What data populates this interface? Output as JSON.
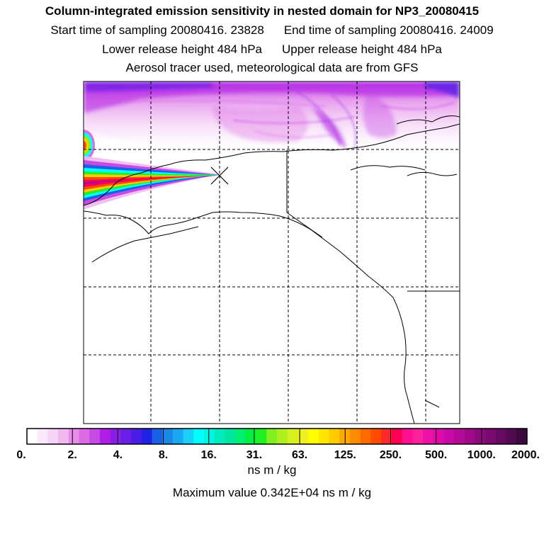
{
  "header": {
    "title": "Column-integrated emission sensitivity in nested domain for NP3_20080415",
    "start_time": "Start time of sampling 20080416. 23828",
    "end_time": "End time of sampling 20080416. 24009",
    "lower_release": "Lower release height  484 hPa",
    "upper_release": "Upper release height  484 hPa",
    "tracer_info": "Aerosol tracer used, meteorological data are from GFS"
  },
  "colorbar": {
    "tick_labels": [
      "0.",
      "2.",
      "4.",
      "8.",
      "16.",
      "31.",
      "63.",
      "125.",
      "250.",
      "500.",
      "1000.",
      "2000."
    ],
    "colors": [
      "#ffffff",
      "#fbe8fb",
      "#f6d2f6",
      "#efb8ef",
      "#e88ee8",
      "#dc6ce6",
      "#c64ae6",
      "#b01ee6",
      "#8a1ee6",
      "#6a1ee6",
      "#4a1ee6",
      "#2222e6",
      "#1a60e6",
      "#1a88e6",
      "#1aa8f0",
      "#1ad0f6",
      "#00ffff",
      "#00f6e0",
      "#00ecc0",
      "#00e6a0",
      "#00ee70",
      "#00f040",
      "#22f020",
      "#80f020",
      "#b0f020",
      "#d6f020",
      "#ecf020",
      "#ffff00",
      "#ffe600",
      "#ffcc00",
      "#ffa800",
      "#ff8c00",
      "#ff6a00",
      "#ff4a00",
      "#ff2a2a",
      "#ff0050",
      "#ff1090",
      "#ff20a0",
      "#f010a8",
      "#e00aa8",
      "#c80aa8",
      "#b40a98",
      "#a00a88",
      "#8a0a7a",
      "#780a70",
      "#640a60",
      "#500a50",
      "#3c0840"
    ],
    "units": "ns m / kg",
    "max_value_text": "Maximum value  0.342E+04 ns m / kg"
  },
  "map": {
    "region": "Alaska and western North America",
    "release_marker": "release-point",
    "background_color": "#ffffff",
    "plume_colors": [
      "#ff00a0",
      "#ff4a00",
      "#ffcc00",
      "#80f020",
      "#00ffff",
      "#1a60e6",
      "#b01ee6",
      "#e88ee8"
    ]
  }
}
